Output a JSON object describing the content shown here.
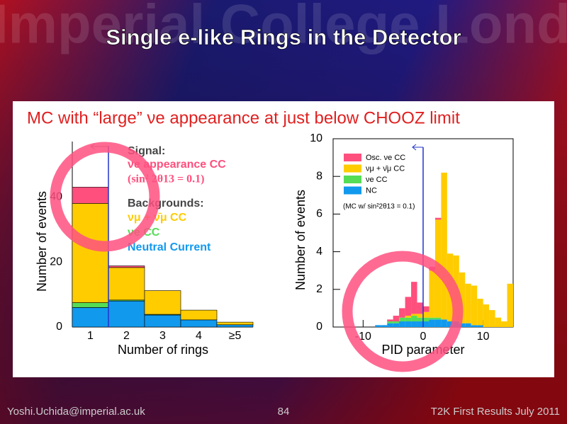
{
  "slide": {
    "watermark": "Imperial College London",
    "title": "Single e-like Rings in the Detector",
    "subtitle": "MC with “large” νe appearance at just below CHOOZ limit",
    "footer_left": "Yoshi.Uchida@imperial.ac.uk",
    "page": "84",
    "footer_right": "T2K First Results July 2011"
  },
  "chart_data": [
    {
      "type": "bar",
      "stacked": true,
      "ylabel": "Number of events",
      "xlabel": "Number of rings",
      "categories": [
        "1",
        "2",
        "3",
        "4",
        "≥5"
      ],
      "ylim": [
        0,
        57
      ],
      "yticks": [
        0,
        20,
        40
      ],
      "legend_headers": [
        "Signal:",
        "Backgrounds:"
      ],
      "annotation": "(sin² 2θ13 = 0.1)",
      "series": [
        {
          "name": "νe appearance CC",
          "color": "#ff4f7d",
          "values": [
            5,
            0.5,
            0,
            0,
            0
          ]
        },
        {
          "name": "νμ + ν̄μ CC",
          "color": "#ffcc00",
          "values": [
            30.5,
            10,
            7.3,
            3,
            0.8
          ]
        },
        {
          "name": "νe CC",
          "color": "#55dd55",
          "values": [
            1.5,
            0.3,
            0.2,
            0,
            0
          ]
        },
        {
          "name": "Neutral Current",
          "color": "#1199ee",
          "values": [
            6,
            8,
            3.7,
            2.2,
            0.7
          ]
        }
      ]
    },
    {
      "type": "histogram",
      "stacked": true,
      "ylabel": "Number of events",
      "xlabel": "PID parameter",
      "bins": [
        -15,
        -14,
        -13,
        -12,
        -11,
        -10,
        -9,
        -8,
        -7,
        -6,
        -5,
        -4,
        -3,
        -2,
        -1,
        0,
        1,
        2,
        3,
        4,
        5,
        6,
        7,
        8,
        9,
        10,
        11,
        12,
        13,
        14,
        15
      ],
      "xlim": [
        -15,
        15
      ],
      "xticks": [
        -10,
        0,
        10
      ],
      "ylim": [
        0,
        10
      ],
      "yticks": [
        0,
        2,
        4,
        6,
        8,
        10
      ],
      "annotation": "(MC w/ sin²2θ13 = 0.1)",
      "series": [
        {
          "name": "Osc. νe CC",
          "color": "#ff4f7d",
          "values": [
            0,
            0,
            0,
            0,
            0,
            0,
            0,
            0,
            0,
            0.1,
            0.3,
            0.5,
            1.0,
            1.7,
            0.6,
            0.3,
            0.2,
            0.1,
            0,
            0,
            0,
            0,
            0,
            0,
            0,
            0,
            0,
            0,
            0,
            0
          ]
        },
        {
          "name": "νμ + ν̄μ CC",
          "color": "#ffcc00",
          "values": [
            0,
            0,
            0,
            0,
            0,
            0,
            0,
            0,
            0,
            0,
            0,
            0,
            0.1,
            0.1,
            0.2,
            0.3,
            2.5,
            5.2,
            7.8,
            3.6,
            3.5,
            2.7,
            2.1,
            2.1,
            1.4,
            1.2,
            0.9,
            0.5,
            0.3,
            2.3
          ]
        },
        {
          "name": "νe CC",
          "color": "#55dd55",
          "values": [
            0,
            0,
            0,
            0,
            0,
            0,
            0,
            0,
            0,
            0.1,
            0.1,
            0.2,
            0.2,
            0.3,
            0.2,
            0.2,
            0.1,
            0.1,
            0,
            0,
            0,
            0,
            0,
            0,
            0,
            0,
            0,
            0,
            0,
            0
          ]
        },
        {
          "name": "NC",
          "color": "#1199ee",
          "values": [
            0,
            0,
            0,
            0,
            0,
            0,
            0,
            0.1,
            0.1,
            0.2,
            0.2,
            0.3,
            0.3,
            0.3,
            0.3,
            0.3,
            0.4,
            0.4,
            0.4,
            0.3,
            0.3,
            0.2,
            0.2,
            0.1,
            0.1,
            0,
            0,
            0,
            0,
            0
          ]
        }
      ]
    }
  ]
}
